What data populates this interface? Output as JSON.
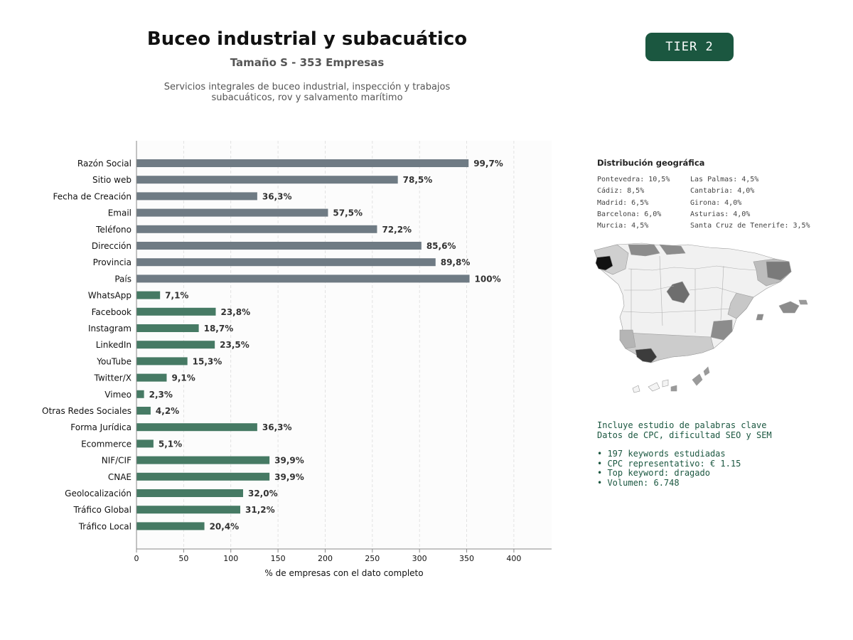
{
  "header": {
    "title": "Buceo industrial y subacuático",
    "subtitle": "Tamaño S - 353 Empresas",
    "description": "Servicios integrales de buceo industrial, inspección y trabajos subacuáticos, rov y salvamento marítimo",
    "tier": "TIER 2"
  },
  "colors": {
    "gray_bar": "#6f7b84",
    "green_bar": "#467a64",
    "accent": "#1b5740"
  },
  "chart_data": {
    "type": "bar",
    "orientation": "horizontal",
    "xlabel": "% de empresas con el dato completo",
    "xlim": [
      0,
      440
    ],
    "xticks": [
      0,
      50,
      100,
      150,
      200,
      250,
      300,
      350,
      400
    ],
    "grid": "vertical dashed",
    "total_companies": 353,
    "categories": [
      "Razón Social",
      "Sitio web",
      "Fecha de Creación",
      "Email",
      "Teléfono",
      "Dirección",
      "Provincia",
      "País",
      "WhatsApp",
      "Facebook",
      "Instagram",
      "LinkedIn",
      "YouTube",
      "Twitter/X",
      "Vimeo",
      "Otras Redes Sociales",
      "Forma Jurídica",
      "Ecommerce",
      "NIF/CIF",
      "CNAE",
      "Geolocalización",
      "Tráfico Global",
      "Tráfico Local"
    ],
    "values": [
      352,
      277,
      128,
      203,
      255,
      302,
      317,
      353,
      25,
      84,
      66,
      83,
      54,
      32,
      8,
      15,
      128,
      18,
      141,
      141,
      113,
      110,
      72
    ],
    "labels": [
      "99,7%",
      "78,5%",
      "36,3%",
      "57,5%",
      "72,2%",
      "85,6%",
      "89,8%",
      "100%",
      "7,1%",
      "23,8%",
      "18,7%",
      "23,5%",
      "15,3%",
      "9,1%",
      "2,3%",
      "4,2%",
      "36,3%",
      "5,1%",
      "39,9%",
      "39,9%",
      "32,0%",
      "31,2%",
      "20,4%"
    ],
    "groups": [
      "gray",
      "gray",
      "gray",
      "gray",
      "gray",
      "gray",
      "gray",
      "gray",
      "green",
      "green",
      "green",
      "green",
      "green",
      "green",
      "green",
      "green",
      "green",
      "green",
      "green",
      "green",
      "green",
      "green",
      "green"
    ]
  },
  "geo": {
    "title": "Distribución geográfica",
    "col1": [
      "Pontevedra: 10,5%",
      "Cádiz: 8,5%",
      "Madrid: 6,5%",
      "Barcelona: 6,0%",
      "Murcia: 4,5%"
    ],
    "col2": [
      "Las Palmas: 4,5%",
      "Cantabria: 4,0%",
      "Girona: 4,0%",
      "Asturias: 4,0%",
      "Santa Cruz de Tenerife: 3,5%"
    ]
  },
  "keywords": {
    "line1": "Incluye estudio de palabras clave",
    "line2": "Datos de CPC, dificultad SEO y SEM",
    "bullets": [
      "• 197 keywords estudiadas",
      "• CPC representativo: € 1.15",
      "• Top keyword: dragado",
      "• Volumen: 6.748"
    ]
  }
}
